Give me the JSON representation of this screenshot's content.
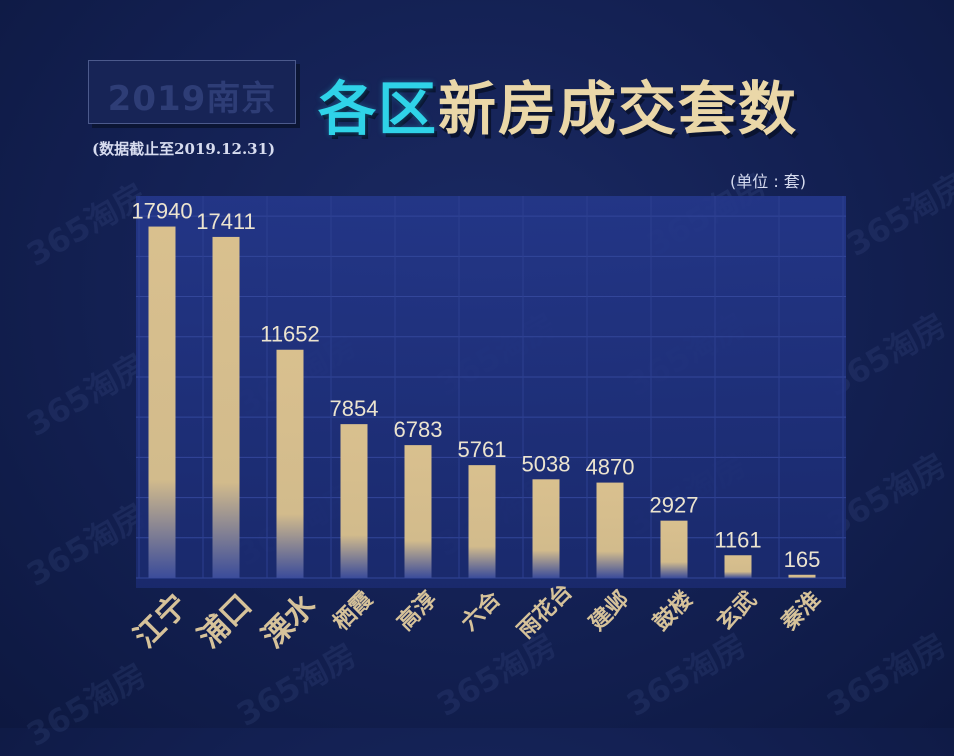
{
  "header": {
    "badge": "2019南京",
    "title_part1": "各区",
    "title_part2": "新房成交套数",
    "cutoff_note": "(数据截止至2019.12.31)",
    "unit_note": "(单位 : 套)"
  },
  "watermark": "365淘房",
  "colors": {
    "background": "#132052",
    "bar_top": "#d9c08e",
    "bar_bottom": "#3b4c9a",
    "title_cyan": "#2fd3e8",
    "title_gold": "#ead7a8"
  },
  "chart_data": {
    "type": "bar",
    "title": "2019南京 各区新房成交套数",
    "unit": "套",
    "categories": [
      "江宁",
      "浦口",
      "溧水",
      "栖霞",
      "高淳",
      "六合",
      "雨花台",
      "建邺",
      "鼓楼",
      "玄武",
      "秦淮"
    ],
    "values": [
      17940,
      17411,
      11652,
      7854,
      6783,
      5761,
      5038,
      4870,
      2927,
      1161,
      165
    ],
    "ylim": [
      0,
      19500
    ],
    "grid": true,
    "data_labels": true
  }
}
